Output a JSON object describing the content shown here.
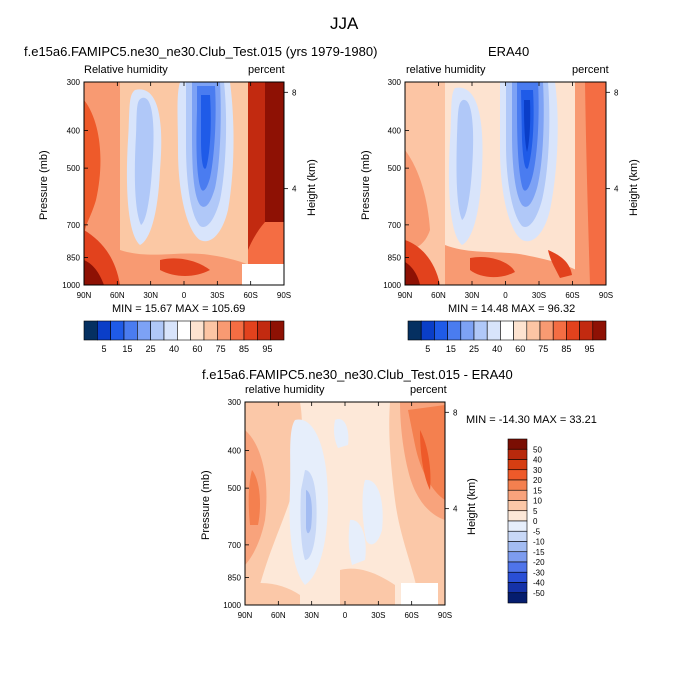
{
  "figure": {
    "title": "JJA",
    "panel1": {
      "title": "f.e15a6.FAMIPC5.ne30_ne30.Club_Test.015 (yrs 1979-1980)",
      "left_label": "Relative humidity",
      "right_label": "percent",
      "minmax": "MIN = 15.67  MAX = 105.69"
    },
    "panel2": {
      "title": "ERA40",
      "left_label": "relative humidity",
      "right_label": "percent",
      "minmax": "MIN = 14.48  MAX = 96.32"
    },
    "panel3": {
      "title": "f.e15a6.FAMIPC5.ne30_ne30.Club_Test.015 - ERA40",
      "left_label": "relative humidity",
      "right_label": "percent",
      "minmax": "MIN = -14.30  MAX =  33.21"
    },
    "ylabel": "Pressure (mb)",
    "ylabel_right": "Height (km)"
  },
  "chart_data": [
    {
      "type": "heatmap",
      "title": "f.e15a6.FAMIPC5.ne30_ne30.Club_Test.015 (yrs 1979-1980)",
      "xlabel": "",
      "ylabel": "Pressure (mb)",
      "x_ticks": [
        "90N",
        "60N",
        "30N",
        "0",
        "30S",
        "60S",
        "90S"
      ],
      "y_ticks": [
        300,
        400,
        500,
        700,
        850,
        1000
      ],
      "y_right_ticks": [
        8,
        4
      ],
      "units": "percent",
      "min": 15.67,
      "max": 105.69,
      "colorbar_labels": [
        5,
        15,
        25,
        40,
        60,
        75,
        85,
        95
      ]
    },
    {
      "type": "heatmap",
      "title": "ERA40",
      "xlabel": "",
      "ylabel": "Pressure (mb)",
      "x_ticks": [
        "90N",
        "60N",
        "30N",
        "0",
        "30S",
        "60S",
        "90S"
      ],
      "y_ticks": [
        300,
        400,
        500,
        700,
        850,
        1000
      ],
      "y_right_ticks": [
        8,
        4
      ],
      "units": "percent",
      "min": 14.48,
      "max": 96.32,
      "colorbar_labels": [
        5,
        15,
        25,
        40,
        60,
        75,
        85,
        95
      ]
    },
    {
      "type": "heatmap",
      "title": "f.e15a6.FAMIPC5.ne30_ne30.Club_Test.015 - ERA40",
      "xlabel": "",
      "ylabel": "Pressure (mb)",
      "x_ticks": [
        "90N",
        "60N",
        "30N",
        "0",
        "30S",
        "60S",
        "90S"
      ],
      "y_ticks": [
        300,
        400,
        500,
        700,
        850,
        1000
      ],
      "y_right_ticks": [
        8,
        4
      ],
      "units": "percent",
      "min": -14.3,
      "max": 33.21,
      "colorbar_labels": [
        50,
        40,
        30,
        20,
        15,
        10,
        5,
        0,
        -5,
        -10,
        -15,
        -20,
        -30,
        -40,
        -50
      ]
    }
  ],
  "colors": {
    "abs_scale": [
      "#053061",
      "#0a3ec8",
      "#1f5be8",
      "#4a7cf0",
      "#7da2f5",
      "#b0c8f8",
      "#d8e4fb",
      "#ffffff",
      "#fde3d0",
      "#fcc5a4",
      "#f89a72",
      "#f46d43",
      "#e2421d",
      "#c22a10",
      "#8e1104"
    ],
    "diff_scale": [
      "#7a0e03",
      "#b8290c",
      "#d63e12",
      "#ee5a2a",
      "#f4804f",
      "#f8a37c",
      "#fbc8a8",
      "#fde8d8",
      "#e6eefb",
      "#c8d8f7",
      "#a3bcf2",
      "#7d9cef",
      "#4f74ea",
      "#2a4fd6",
      "#1532a8",
      "#051d6e"
    ]
  }
}
